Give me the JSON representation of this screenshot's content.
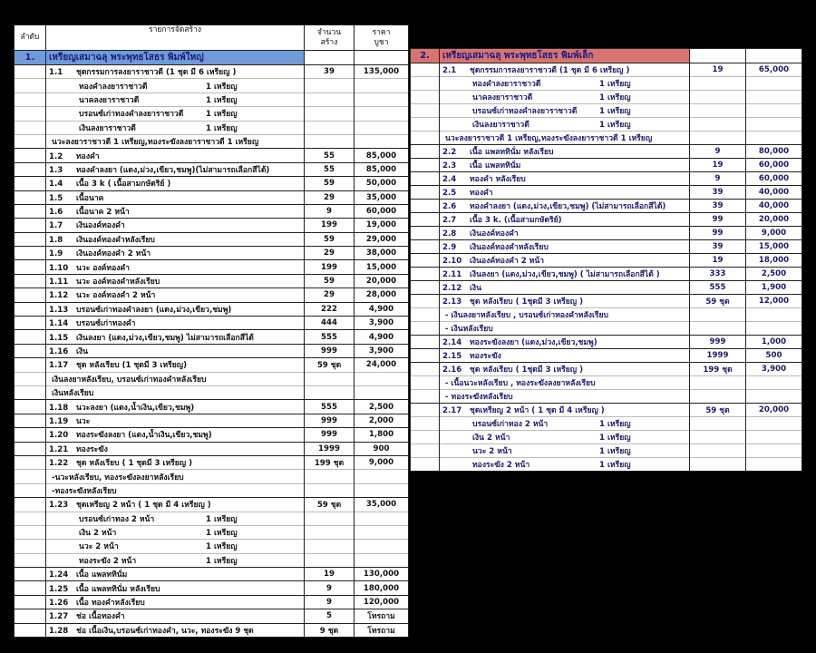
{
  "header": {
    "order": "ลำดับ",
    "items": "รายการจัดสร้าง",
    "qty": "จำนวน\nสร้าง",
    "price": "ราคา\nบูชา"
  },
  "sections": [
    {
      "no": "1.",
      "title": "เหรียญเสมาฉลุ พระพุทธโสธร พิมพ์ใหญ่",
      "color": "#6f9bd8",
      "items": [
        {
          "no": "1.1",
          "name": "ชุดกรรมการลงยาราชาวดี      (1 ชุด มี 6 เหรียญ )",
          "qty": "39",
          "price": "135,000",
          "components": [
            [
              "ทองคำลงยาราชาวดี",
              "1  เหรียญ"
            ],
            [
              "นาคลงยาราชาวดี",
              "1  เหรียญ"
            ],
            [
              "บรอนซ์เก่าทองคำลงยาราชาวดี",
              "1  เหรียญ"
            ],
            [
              "เงินลงยาราชาวดี",
              "1  เหรียญ"
            ]
          ],
          "notes": [
            "นวะลงยาราชาวดี 1 เหรียญ,ทองระฆังลงยาราชาวดี 1 เหรียญ"
          ]
        },
        {
          "no": "1.2",
          "name": "ทองคำ",
          "qty": "55",
          "price": "85,000"
        },
        {
          "no": "1.3",
          "name": "ทองคำลงยา (แดง,ม่วง,เขียว,ชมพู)(ไม่สามารถเลือกสีได้)",
          "qty": "55",
          "price": "85,000"
        },
        {
          "no": "1.4",
          "name": "เนื้อ 3 k ( เนื้อสามกษัตริย์ )",
          "qty": "59",
          "price": "50,000"
        },
        {
          "no": "1.5",
          "name": "เนื้อนาค",
          "qty": "29",
          "price": "35,000"
        },
        {
          "no": "1.6",
          "name": "เนื้อนาค 2 หน้า",
          "qty": "9",
          "price": "60,000"
        },
        {
          "no": "1.7",
          "name": "เงินองค์ทองคำ",
          "qty": "199",
          "price": "19,000"
        },
        {
          "no": "1.8",
          "name": "เงินองค์ทองคำหลังเรียบ",
          "qty": "59",
          "price": "29,000"
        },
        {
          "no": "1.9",
          "name": "เงินองค์ทองคำ 2 หน้า",
          "qty": "29",
          "price": "38,000"
        },
        {
          "no": "1.10",
          "name": "นวะ องค์ทองคำ",
          "qty": "199",
          "price": "15,000"
        },
        {
          "no": "1.11",
          "name": "นวะ องค์ทองคำหลังเรียบ",
          "qty": "59",
          "price": "20,000"
        },
        {
          "no": "1.12",
          "name": "นวะ องค์ทองคำ 2 หน้า",
          "qty": "29",
          "price": "28,000"
        },
        {
          "no": "1.13",
          "name": "บรอนซ์เก่าทองคำลงยา  (แดง,ม่วง,เขียว,ชมพู)",
          "qty": "222",
          "price": "4,900"
        },
        {
          "no": "1.14",
          "name": "บรอนซ์เก่าทองคำ",
          "qty": "444",
          "price": "3,900"
        },
        {
          "no": "1.15",
          "name": "เงินลงยา   (แดง,ม่วง,เขียว,ชมพู)     ไม่สามารถเลือกสีได้",
          "qty": "555",
          "price": "4,900"
        },
        {
          "no": "1.16",
          "name": "เงิน",
          "qty": "999",
          "price": "3,900"
        },
        {
          "no": "1.17",
          "name": "ชุด หลังเรียบ (1 ชุดมี 3 เหรียญ)",
          "qty": "59 ชุด",
          "price": "24,000",
          "notes": [
            "เงินลงยาหลังเรียบ, บรอนซ์เก่าทองคำหลังเรียบ",
            "เงินหลังเรียบ"
          ]
        },
        {
          "no": "1.18",
          "name": "นวะลงยา  (แดง,น้ำเงิน,เขียว,ชมพู)",
          "qty": "555",
          "price": "2,500"
        },
        {
          "no": "1.19",
          "name": "นวะ",
          "qty": "999",
          "price": "2,000"
        },
        {
          "no": "1.20",
          "name": "ทองระฆังลงยา (แดง,น้ำเงิน,เขียว,ชมพู)",
          "qty": "999",
          "price": "1,800"
        },
        {
          "no": "1.21",
          "name": "ทองระฆัง",
          "qty": "1999",
          "price": "900"
        },
        {
          "no": "1.22",
          "name": "ชุด หลังเรียบ ( 1 ชุดมี 3 เหรียญ )",
          "qty": "199 ชุด",
          "price": "9,000",
          "notes": [
            "-นวะหลังเรียบ, ทองระฆังลงยาหลังเรียบ",
            "-ทองระฆังหลังเรียบ"
          ]
        },
        {
          "no": "1.23",
          "name": "ชุดเหรียญ 2 หน้า   ( 1 ชุด มี 4 เหรียญ )",
          "qty": "59 ชุด",
          "price": "35,000",
          "components": [
            [
              "บรอนซ์เก่าทอง 2 หน้า",
              "1  เหรียญ"
            ],
            [
              "เงิน 2 หน้า",
              "1  เหรียญ"
            ],
            [
              "นวะ 2 หน้า",
              "1  เหรียญ"
            ],
            [
              "ทองระฆัง 2 หน้า",
              "1  เหรียญ"
            ]
          ]
        },
        {
          "no": "1.24",
          "name": "เนื้อ แพลททินั่ม",
          "qty": "19",
          "price": "130,000"
        },
        {
          "no": "1.25",
          "name": "เนื้อ แพลททินั่ม หลังเรียบ",
          "qty": "9",
          "price": "180,000"
        },
        {
          "no": "1.26",
          "name": "เนื้อ ทองคำหลังเรียบ",
          "qty": "9",
          "price": "120,000"
        },
        {
          "no": "1.27",
          "name": "ช่อ เนื้อทองคำ",
          "qty": "5",
          "price": "โทรถาม"
        },
        {
          "no": "1.28",
          "name": "ช่อ เนื้อเงิน,บรอนซ์เก่าทองคำ, นวะ, ทองระฆัง 9 ชุด",
          "qty": "9 ชุด",
          "price": "โทรถาม"
        }
      ]
    },
    {
      "no": "2.",
      "title": "เหรียญเสมาฉลุ พระพุทธโสธร พิมพ์เล็ก",
      "color": "#d77470",
      "items": [
        {
          "no": "2.1",
          "name": "ชุดกรรมการลงยาราชาวดี      (1 ชุด มี 6 เหรียญ )",
          "qty": "19",
          "price": "65,000",
          "components": [
            [
              "ทองคำลงยาราชาวดี",
              "1  เหรียญ"
            ],
            [
              "นาคลงยาราชาวดี",
              "1  เหรียญ"
            ],
            [
              "บรอนซ์เก่าทองคำลงยาราชาวดี",
              "1  เหรียญ"
            ],
            [
              "เงินลงยาราชาวดี",
              "1  เหรียญ"
            ]
          ],
          "notes": [
            "นวะลงยาราชาวดี 1 เหรียญ,ทองระฆังลงยาราชาวดี 1 เหรียญ"
          ]
        },
        {
          "no": "2.2",
          "name": "เนื้อ แพลททินั่ม   หลังเรียบ",
          "qty": "9",
          "price": "80,000"
        },
        {
          "no": "2.3",
          "name": "เนื้อ แพลททินั่ม",
          "qty": "19",
          "price": "60,000"
        },
        {
          "no": "2.4",
          "name": "ทองคำ หลังเรียบ",
          "qty": "9",
          "price": "60,000"
        },
        {
          "no": "2.5",
          "name": "ทองคำ",
          "qty": "39",
          "price": "40,000"
        },
        {
          "no": "2.6",
          "name": "ทองคำลงยา (แดง,ม่วง,เขียว,ชมพู) (ไม่สามารถเลือกสีได้)",
          "qty": "39",
          "price": "40,000"
        },
        {
          "no": "2.7",
          "name": "เนื้อ 3 k.   (เนื้อสามกษัตริย์)",
          "qty": "99",
          "price": "20,000"
        },
        {
          "no": "2.8",
          "name": "เงินองค์ทองคำ",
          "qty": "99",
          "price": "9,000"
        },
        {
          "no": "2.9",
          "name": "เงินองค์ทองคำหลังเรียบ",
          "qty": "39",
          "price": "15,000"
        },
        {
          "no": "2.10",
          "name": "เงินองค์ทองคำ 2 หน้า",
          "qty": "19",
          "price": "18,000"
        },
        {
          "no": "2.11",
          "name": "เงินลงยา   (แดง,ม่วง,เขียว,ชมพู) ( ไม่สามารถเลือกสีได้ )",
          "qty": "333",
          "price": "2,500"
        },
        {
          "no": "2.12",
          "name": "เงิน",
          "qty": "555",
          "price": "1,900"
        },
        {
          "no": "2.13",
          "name": "ชุด หลังเรียบ              ( 1ชุดมี 3 เหรียญ )",
          "qty": "59 ชุด",
          "price": "12,000",
          "notes": [
            "- เงินลงยาหลังเรียบ  , บรอนซ์เก่าทองคำหลังเรียบ",
            "- เงินหลังเรียบ"
          ]
        },
        {
          "no": "2.14",
          "name": "ทองระฆังลงยา (แดง,ม่วง,เขียว,ชมพู)",
          "qty": "999",
          "price": "1,000"
        },
        {
          "no": "2.15",
          "name": "ทองระฆัง",
          "qty": "1999",
          "price": "500"
        },
        {
          "no": "2.16",
          "name": "ชุด หลังเรียบ              ( 1ชุดมี 3 เหรียญ )",
          "qty": "199 ชุด",
          "price": "3,900",
          "notes": [
            "- เนื้อนวะหลังเรียบ  , ทองระฆังลงยาหลังเรียบ",
            "- ทองระฆังหลังเรียบ"
          ]
        },
        {
          "no": "2.17",
          "name": "ชุดเหรียญ 2 หน้า   ( 1 ชุด มี 4 เหรียญ )",
          "qty": "59 ชุด",
          "price": "20,000",
          "components": [
            [
              "บรอนซ์เก่าทอง 2 หน้า",
              "1  เหรียญ"
            ],
            [
              "เงิน 2 หน้า",
              "1  เหรียญ"
            ],
            [
              "นวะ 2 หน้า",
              "1  เหรียญ"
            ],
            [
              "ทองระฆัง 2 หน้า",
              "1  เหรียญ"
            ]
          ]
        }
      ]
    }
  ]
}
